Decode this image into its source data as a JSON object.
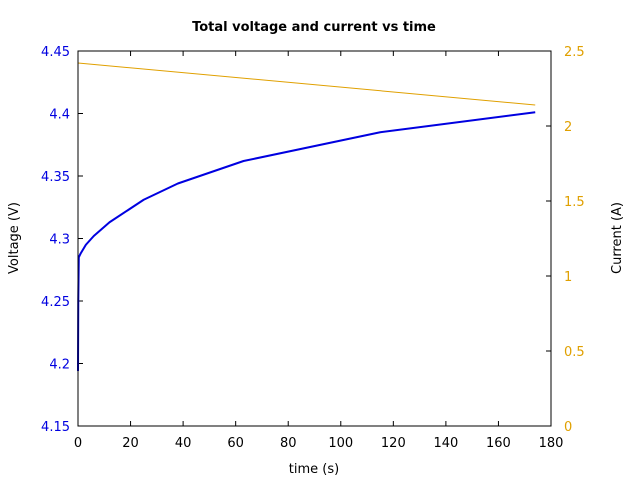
{
  "chart_data": {
    "type": "line",
    "title": "Total voltage and current vs time",
    "xlabel": "time (s)",
    "ylabel_left": "Voltage (V)",
    "ylabel_right": "Current (A)",
    "xlim": [
      0,
      180
    ],
    "ylim_left": [
      4.15,
      4.45
    ],
    "ylim_right": [
      0,
      2.5
    ],
    "xticks": [
      0,
      20,
      40,
      60,
      80,
      100,
      120,
      140,
      160,
      180
    ],
    "xtick_labels": [
      "0",
      "20",
      "40",
      "60",
      "80",
      "100",
      "120",
      "140",
      "160",
      "180"
    ],
    "yticks_left": [
      4.15,
      4.2,
      4.25,
      4.3,
      4.35,
      4.4,
      4.45
    ],
    "ytick_labels_left": [
      "4.15",
      "4.2",
      "4.25",
      "4.3",
      "4.35",
      "4.4",
      "4.45"
    ],
    "yticks_right": [
      0,
      0.5,
      1,
      1.5,
      2,
      2.5
    ],
    "ytick_labels_right": [
      "0",
      "0.5",
      "1",
      "1.5",
      "2",
      "2.5"
    ],
    "grid": false,
    "legend": false,
    "colors": {
      "voltage": "#0000e0",
      "current": "#e0a000",
      "left_axis_text": "#0000e0",
      "right_axis_text": "#e0a000"
    },
    "series": [
      {
        "axis": "left",
        "x": [
          0,
          0.1,
          0.3,
          1,
          3,
          6,
          12,
          25,
          38,
          63,
          115,
          174
        ],
        "y": [
          4.194,
          4.25,
          4.285,
          4.288,
          4.295,
          4.302,
          4.313,
          4.331,
          4.344,
          4.362,
          4.385,
          4.401
        ]
      },
      {
        "axis": "right",
        "x": [
          0,
          174
        ],
        "y": [
          2.42,
          2.14
        ]
      }
    ]
  }
}
